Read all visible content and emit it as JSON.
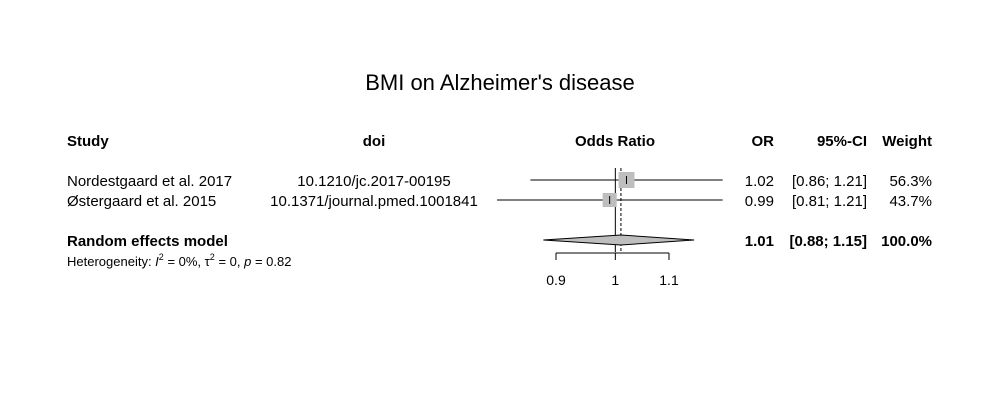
{
  "chart_data": {
    "type": "forest",
    "title": "BMI on Alzheimer's disease",
    "columns": {
      "study": "Study",
      "doi": "doi",
      "effect": "Odds Ratio",
      "or": "OR",
      "ci": "95%-CI",
      "weight": "Weight"
    },
    "studies": [
      {
        "study": "Nordestgaard et al. 2017",
        "doi": "10.1210/jc.2017-00195",
        "or": 1.02,
        "lower": 0.86,
        "upper": 1.21,
        "or_label": "1.02",
        "ci_label": "[0.86; 1.21]",
        "weight_label": "56.3%",
        "weight": 56.3
      },
      {
        "study": "Østergaard et al. 2015",
        "doi": "10.1371/journal.pmed.1001841",
        "or": 0.99,
        "lower": 0.81,
        "upper": 1.21,
        "or_label": "0.99",
        "ci_label": "[0.81; 1.21]",
        "weight_label": "43.7%",
        "weight": 43.7
      }
    ],
    "pooled": {
      "label": "Random effects model",
      "or": 1.01,
      "lower": 0.88,
      "upper": 1.15,
      "or_label": "1.01",
      "ci_label": "[0.88; 1.15]",
      "weight_label": "100.0%"
    },
    "heterogeneity": {
      "prefix": "Heterogeneity: ",
      "i2_symbol": "I",
      "i2_value": "= 0%, ",
      "tau2_symbol": "τ",
      "tau2_value": "= 0, ",
      "p_symbol": "p",
      "p_value": "= 0.82"
    },
    "x_axis": {
      "scale": "log",
      "ticks": [
        0.9,
        1,
        1.1
      ],
      "tick_labels": [
        "0.9",
        "1",
        "1.1"
      ],
      "range": [
        0.9,
        1.1
      ],
      "reference_line": 1
    },
    "colors": {
      "square": "#bebebe",
      "diamond": "#bebebe",
      "line": "#000000"
    }
  }
}
